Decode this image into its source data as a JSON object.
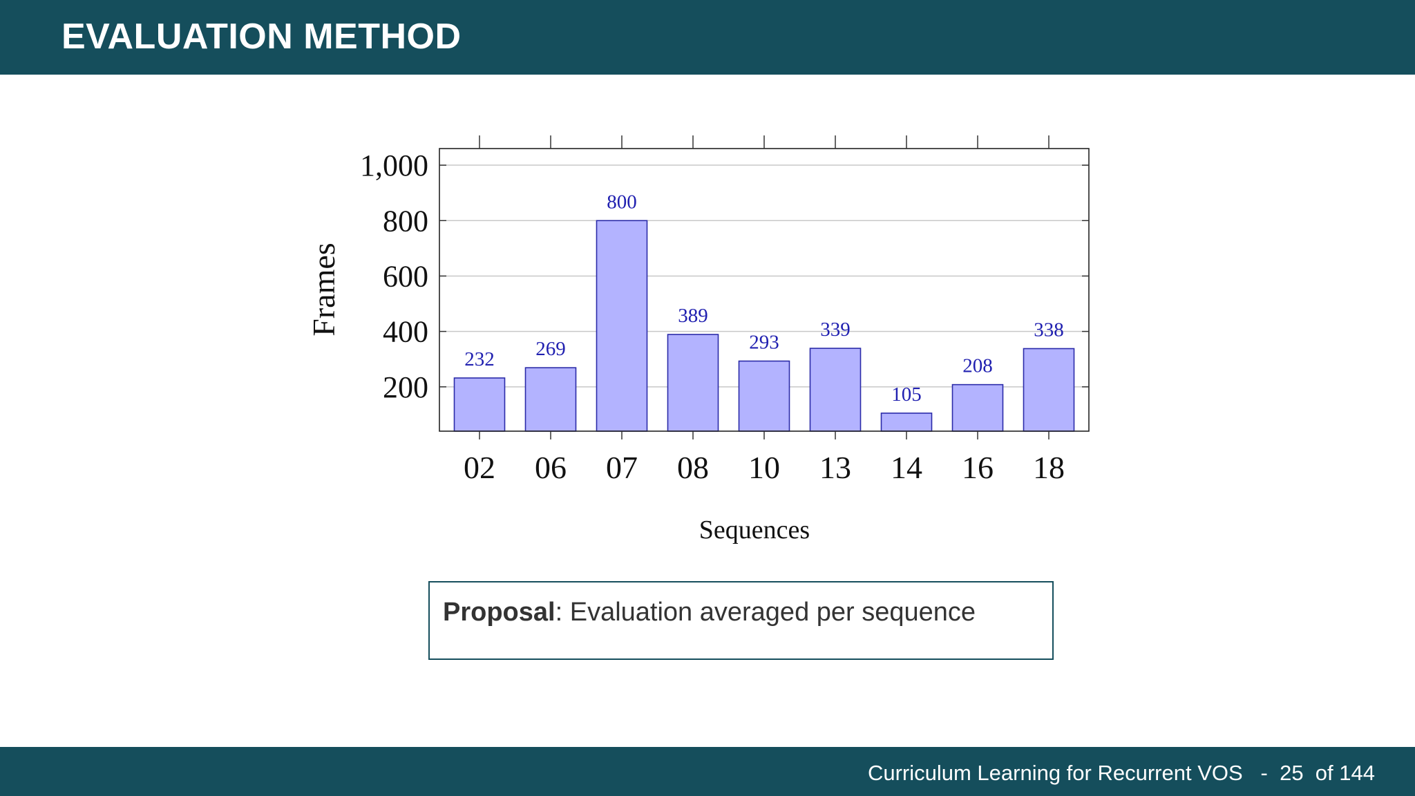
{
  "header": {
    "title": "EVALUATION METHOD"
  },
  "footer": {
    "presentation_title": "Curriculum Learning for Recurrent VOS",
    "separator": "-",
    "page_number": "25",
    "page_total_label": "of 144"
  },
  "proposal": {
    "label": "Proposal",
    "text": ": Evaluation averaged per sequence"
  },
  "colors": {
    "brand": "#154e5c",
    "bar_fill": "#b3b3ff",
    "bar_stroke": "#2a2aa8",
    "data_label": "#2020b0"
  },
  "chart_data": {
    "type": "bar",
    "categories": [
      "02",
      "06",
      "07",
      "08",
      "10",
      "13",
      "14",
      "16",
      "18"
    ],
    "values": [
      232,
      269,
      800,
      389,
      293,
      339,
      105,
      208,
      338
    ],
    "data_labels": [
      "232",
      "269",
      "800",
      "389",
      "293",
      "339",
      "105",
      "208",
      "338"
    ],
    "title": "",
    "xlabel": "Sequences",
    "ylabel": "Frames",
    "ylim": [
      40,
      1060
    ],
    "yticks": [
      200,
      400,
      600,
      800,
      1000
    ],
    "ytick_labels": [
      "200",
      "400",
      "600",
      "800",
      "1,000"
    ],
    "grid": "horizontal"
  }
}
